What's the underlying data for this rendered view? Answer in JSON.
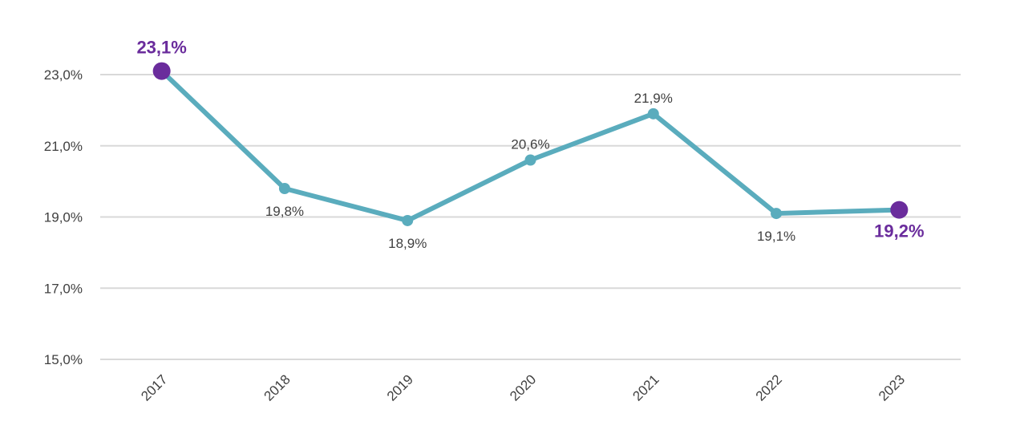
{
  "chart_data": {
    "type": "line",
    "title": "",
    "xlabel": "",
    "ylabel": "",
    "categories": [
      "2017",
      "2018",
      "2019",
      "2020",
      "2021",
      "2022",
      "2023"
    ],
    "series": [
      {
        "values": [
          23.1,
          19.8,
          18.9,
          20.6,
          21.9,
          19.1,
          19.2
        ]
      }
    ],
    "data_labels": [
      "23,1%",
      "19,8%",
      "18,9%",
      "20,6%",
      "21,9%",
      "19,1%",
      "19,2%"
    ],
    "highlighted_points": [
      0,
      6
    ],
    "ylim": [
      15,
      23
    ],
    "y_ticks": [
      15,
      17,
      19,
      21,
      23
    ],
    "y_tick_labels": [
      "15,0%",
      "17,0%",
      "19,0%",
      "21,0%",
      "23,0%"
    ],
    "grid": true,
    "legend": "none",
    "colors": {
      "line": "#5aacbd",
      "highlight": "#6a2c9c",
      "grid": "#d9d9d9",
      "text": "#404040"
    }
  }
}
